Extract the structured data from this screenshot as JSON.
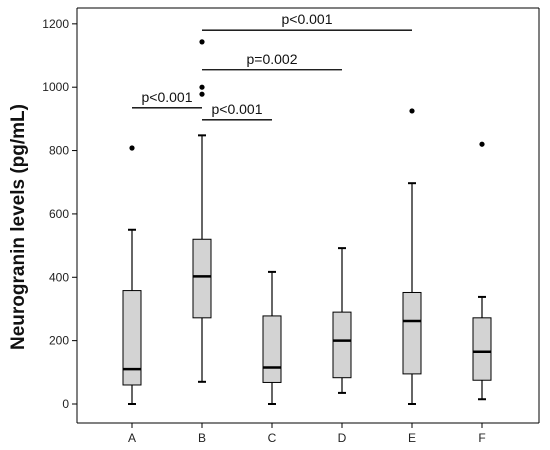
{
  "chart_data": {
    "type": "boxplot",
    "title": "",
    "xlabel": "",
    "ylabel": "Neurogranin levels (pg/mL)",
    "ylim": [
      -60,
      1250
    ],
    "yticks": [
      0,
      200,
      400,
      600,
      800,
      1000,
      1200
    ],
    "ytick_labels": [
      "0",
      "200",
      "400",
      "600",
      "800",
      "1000",
      "1200"
    ],
    "grid": false,
    "legend": "none",
    "colors": {
      "box_fill": "#d3d3d3",
      "stroke": "#000000",
      "background": "#ffffff"
    },
    "categories": [
      "A",
      "B",
      "C",
      "D",
      "E",
      "F"
    ],
    "boxes": [
      {
        "category": "A",
        "whisker_low": 0,
        "q1": 60,
        "median": 110,
        "q3": 358,
        "whisker_high": 550,
        "outliers": [
          808
        ]
      },
      {
        "category": "B",
        "whisker_low": 70,
        "q1": 272,
        "median": 403,
        "q3": 520,
        "whisker_high": 848,
        "outliers": [
          978,
          1000,
          1143
        ]
      },
      {
        "category": "C",
        "whisker_low": 0,
        "q1": 68,
        "median": 115,
        "q3": 278,
        "whisker_high": 417,
        "outliers": []
      },
      {
        "category": "D",
        "whisker_low": 35,
        "q1": 83,
        "median": 200,
        "q3": 290,
        "whisker_high": 492,
        "outliers": []
      },
      {
        "category": "E",
        "whisker_low": 0,
        "q1": 95,
        "median": 262,
        "q3": 352,
        "whisker_high": 697,
        "outliers": [
          925
        ]
      },
      {
        "category": "F",
        "whisker_low": 15,
        "q1": 75,
        "median": 165,
        "q3": 272,
        "whisker_high": 338,
        "outliers": [
          820
        ]
      }
    ],
    "annotations": [
      {
        "from": "A",
        "to": "B",
        "y": 935,
        "label": "p<0.001"
      },
      {
        "from": "B",
        "to": "C",
        "y": 897,
        "label": "p<0.001"
      },
      {
        "from": "B",
        "to": "D",
        "y": 1055,
        "label": "p=0.002"
      },
      {
        "from": "B",
        "to": "E",
        "y": 1180,
        "label": "p<0.001"
      }
    ]
  }
}
